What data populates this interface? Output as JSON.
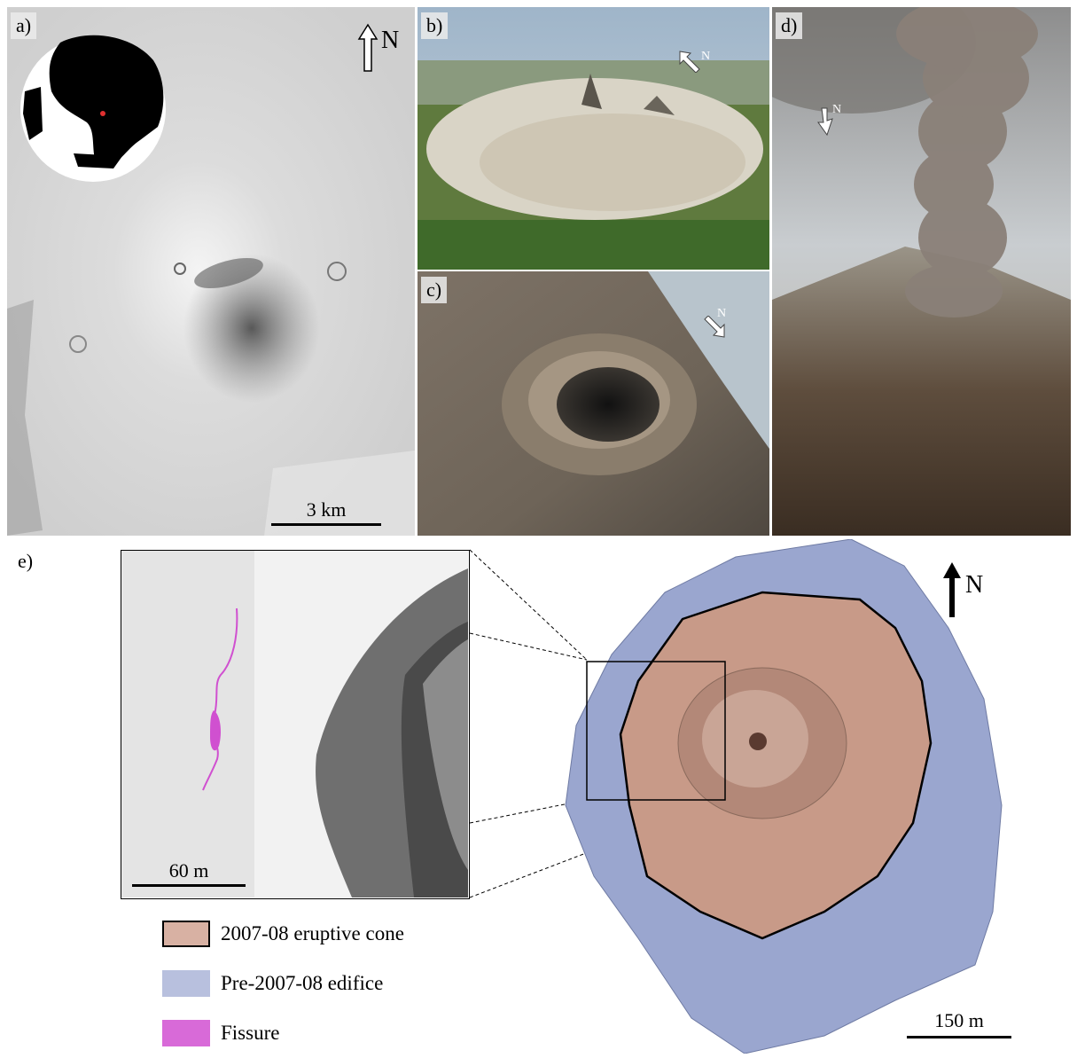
{
  "panels": {
    "a": {
      "label": "a)",
      "north": "N",
      "scale": "3 km"
    },
    "b": {
      "label": "b)",
      "north": "N"
    },
    "c": {
      "label": "c)",
      "north": "N"
    },
    "d": {
      "label": "d)",
      "north": "N"
    },
    "e": {
      "label": "e)",
      "north": "N",
      "inset_scale": "60 m",
      "map_scale": "150 m"
    }
  },
  "legend": [
    {
      "label": "2007-08 eruptive cone",
      "color": "#d8b1a3"
    },
    {
      "label": "Pre-2007-08 edifice",
      "color": "#b8c0de"
    },
    {
      "label": "Fissure",
      "color": "#d86ad8"
    }
  ],
  "colors": {
    "cone": "#c89a88",
    "edifice": "#9aa6cf",
    "fissure": "#d050d0"
  }
}
